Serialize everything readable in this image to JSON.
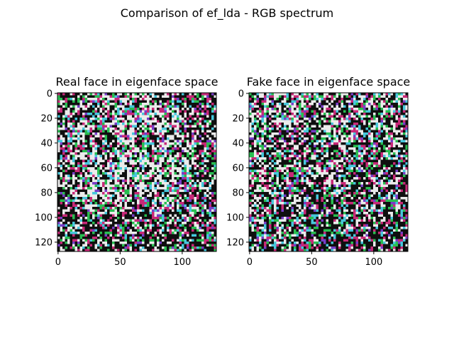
{
  "figure": {
    "suptitle": "Comparison of ef_lda - RGB spectrum"
  },
  "chart_data": [
    {
      "type": "heatmap",
      "title": "Real face in eigenface space",
      "xlabel": "",
      "ylabel": "",
      "xlim": [
        0,
        127
      ],
      "ylim": [
        127,
        0
      ],
      "xticks": [
        0,
        50,
        100
      ],
      "yticks": [
        0,
        20,
        40,
        60,
        80,
        100,
        120
      ],
      "grid": false,
      "image_size": [
        128,
        128
      ],
      "colormap": "rgb"
    },
    {
      "type": "heatmap",
      "title": "Fake face in eigenface space",
      "xlabel": "",
      "ylabel": "",
      "xlim": [
        0,
        127
      ],
      "ylim": [
        127,
        0
      ],
      "xticks": [
        0,
        50,
        100
      ],
      "yticks": [
        0,
        20,
        40,
        60,
        80,
        100,
        120
      ],
      "grid": false,
      "image_size": [
        128,
        128
      ],
      "colormap": "rgb"
    }
  ]
}
